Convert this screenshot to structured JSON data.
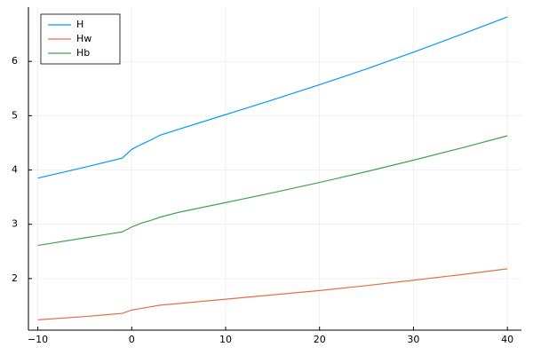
{
  "chart_data": {
    "type": "line",
    "x": [
      -10,
      -5,
      -1,
      0,
      1,
      2,
      3,
      5,
      10,
      15,
      20,
      25,
      30,
      35,
      40
    ],
    "series": [
      {
        "name": "H",
        "color": "#009af9",
        "values": [
          3.85,
          4.05,
          4.22,
          4.38,
          4.47,
          4.55,
          4.64,
          4.75,
          5.02,
          5.29,
          5.57,
          5.86,
          6.17,
          6.49,
          6.82
        ]
      },
      {
        "name": "Hw",
        "color": "#e26f46",
        "values": [
          1.24,
          1.3,
          1.36,
          1.42,
          1.45,
          1.48,
          1.51,
          1.54,
          1.62,
          1.7,
          1.78,
          1.87,
          1.97,
          2.07,
          2.18
        ]
      },
      {
        "name": "Hb",
        "color": "#3da44d",
        "values": [
          2.61,
          2.75,
          2.86,
          2.95,
          3.02,
          3.07,
          3.13,
          3.22,
          3.4,
          3.58,
          3.77,
          3.97,
          4.18,
          4.4,
          4.63
        ]
      }
    ],
    "xlim": [
      -11,
      41.5
    ],
    "xticks": [
      {
        "value": -10,
        "label": "−10"
      },
      0,
      10,
      20,
      30,
      40
    ],
    "ylim": [
      1.05,
      7.0
    ],
    "yticks": [
      2,
      3,
      4,
      5,
      6
    ],
    "grid": true,
    "legend": "top-left"
  }
}
